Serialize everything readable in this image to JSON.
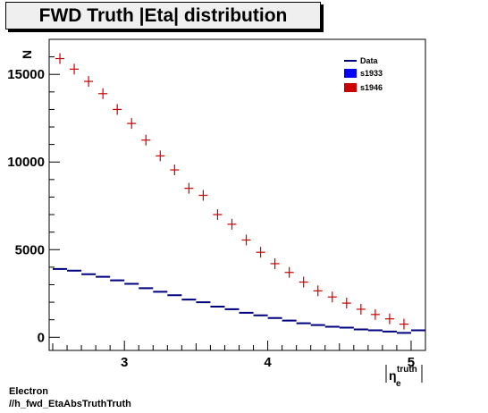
{
  "title": "FWD Truth |Eta| distribution",
  "footer": {
    "line1": "Electron",
    "line2": "//h_fwd_EtaAbsTruthTruth"
  },
  "colors": {
    "data": "#00007f",
    "s1933": "#0000ff",
    "s1946": "#cc0000",
    "title_bg": "#efefef"
  },
  "chart_data": {
    "type": "line",
    "xlabel": "|η_e^truth|",
    "ylabel": "N",
    "xlim": [
      2.475,
      5.1
    ],
    "ylim": [
      -750,
      17000
    ],
    "x_ticks": [
      3,
      4,
      5
    ],
    "y_ticks": [
      0,
      5000,
      10000,
      15000
    ],
    "x_tick_labels": [
      "3",
      "4",
      "5"
    ],
    "y_tick_labels": [
      "0",
      "5000",
      "10000",
      "15000"
    ],
    "legend_position": "top-right",
    "bin_width": 0.1,
    "x": [
      2.55,
      2.65,
      2.75,
      2.85,
      2.95,
      3.05,
      3.15,
      3.25,
      3.35,
      3.45,
      3.55,
      3.65,
      3.75,
      3.85,
      3.95,
      4.05,
      4.15,
      4.25,
      4.35,
      4.45,
      4.55,
      4.65,
      4.75,
      4.85,
      4.95,
      5.05
    ],
    "series": [
      {
        "name": "Data",
        "style": "line",
        "values": [
          3900,
          3800,
          3600,
          3450,
          3250,
          3050,
          2800,
          2600,
          2400,
          2150,
          2000,
          1750,
          1600,
          1400,
          1250,
          1100,
          950,
          800,
          700,
          600,
          550,
          450,
          400,
          330,
          250,
          400
        ]
      },
      {
        "name": "s1933",
        "style": "marker-box",
        "values": [
          3900,
          3800,
          3600,
          3450,
          3250,
          3050,
          2800,
          2600,
          2400,
          2150,
          2000,
          1750,
          1600,
          1400,
          1250,
          1100,
          950,
          800,
          700,
          600,
          550,
          450,
          400,
          330,
          250,
          400
        ]
      },
      {
        "name": "s1946",
        "style": "marker-box",
        "values": [
          15900,
          15300,
          14600,
          13900,
          13000,
          12200,
          11250,
          10350,
          9550,
          8500,
          8100,
          7000,
          6450,
          5550,
          4850,
          4200,
          3700,
          3150,
          2650,
          2300,
          1950,
          1600,
          1300,
          1050,
          750,
          null
        ]
      }
    ]
  }
}
